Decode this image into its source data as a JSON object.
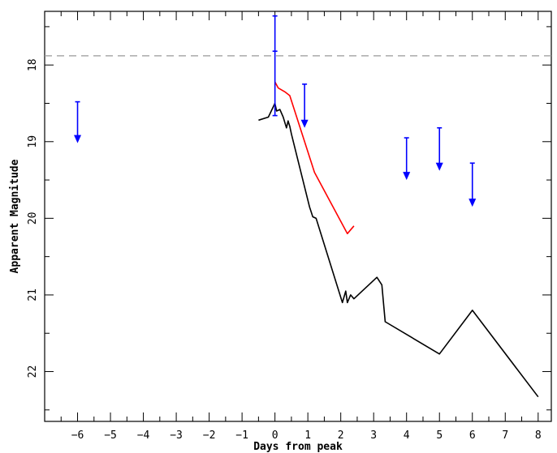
{
  "chart_data": {
    "type": "line",
    "title": "",
    "xlabel": "Days from peak",
    "ylabel": "Apparent Magnitude",
    "xlim": [
      -7.0,
      8.4
    ],
    "ylim": [
      17.3,
      22.65
    ],
    "y_inverted": true,
    "x_ticks": [
      -6,
      -5,
      -4,
      -3,
      -2,
      -1,
      0,
      1,
      2,
      3,
      4,
      5,
      6,
      7,
      8
    ],
    "y_ticks": [
      18,
      19,
      20,
      21,
      22
    ],
    "grid": false,
    "legend": "none",
    "reference_line": {
      "y": 17.88,
      "style": "dashed",
      "color": "#999999"
    },
    "series": [
      {
        "color": "#000000",
        "points": [
          [
            -0.5,
            18.72
          ],
          [
            -0.2,
            18.68
          ],
          [
            0.0,
            18.5
          ],
          [
            0.05,
            18.6
          ],
          [
            0.15,
            18.58
          ],
          [
            0.25,
            18.68
          ],
          [
            0.35,
            18.82
          ],
          [
            0.4,
            18.73
          ],
          [
            0.45,
            18.8
          ],
          [
            0.5,
            18.9
          ],
          [
            1.05,
            19.85
          ],
          [
            1.15,
            19.98
          ],
          [
            1.25,
            20.0
          ],
          [
            2.05,
            21.1
          ],
          [
            2.15,
            20.95
          ],
          [
            2.2,
            21.1
          ],
          [
            2.3,
            21.0
          ],
          [
            2.4,
            21.05
          ],
          [
            3.1,
            20.77
          ],
          [
            3.25,
            20.87
          ],
          [
            3.35,
            21.35
          ],
          [
            5.0,
            21.77
          ],
          [
            6.0,
            21.2
          ],
          [
            8.0,
            22.33
          ]
        ]
      },
      {
        "color": "#ff0000",
        "points": [
          [
            0.0,
            18.22
          ],
          [
            0.1,
            18.3
          ],
          [
            0.3,
            18.35
          ],
          [
            0.45,
            18.4
          ],
          [
            1.2,
            19.4
          ],
          [
            2.2,
            20.2
          ],
          [
            2.4,
            20.1
          ]
        ]
      }
    ],
    "error_bars": [
      {
        "x": 0.0,
        "y": 17.82,
        "ylow": 17.36,
        "yhigh": 18.66,
        "color": "#0000ff"
      }
    ],
    "upper_limits": [
      {
        "x": -6.0,
        "y": 18.48,
        "arrow_to": 19.02,
        "color": "#0000ff"
      },
      {
        "x": 0.9,
        "y": 18.25,
        "arrow_to": 18.82,
        "color": "#0000ff"
      },
      {
        "x": 4.0,
        "y": 18.95,
        "arrow_to": 19.5,
        "color": "#0000ff"
      },
      {
        "x": 5.0,
        "y": 18.82,
        "arrow_to": 19.38,
        "color": "#0000ff"
      },
      {
        "x": 6.0,
        "y": 19.28,
        "arrow_to": 19.85,
        "color": "#0000ff"
      }
    ]
  }
}
